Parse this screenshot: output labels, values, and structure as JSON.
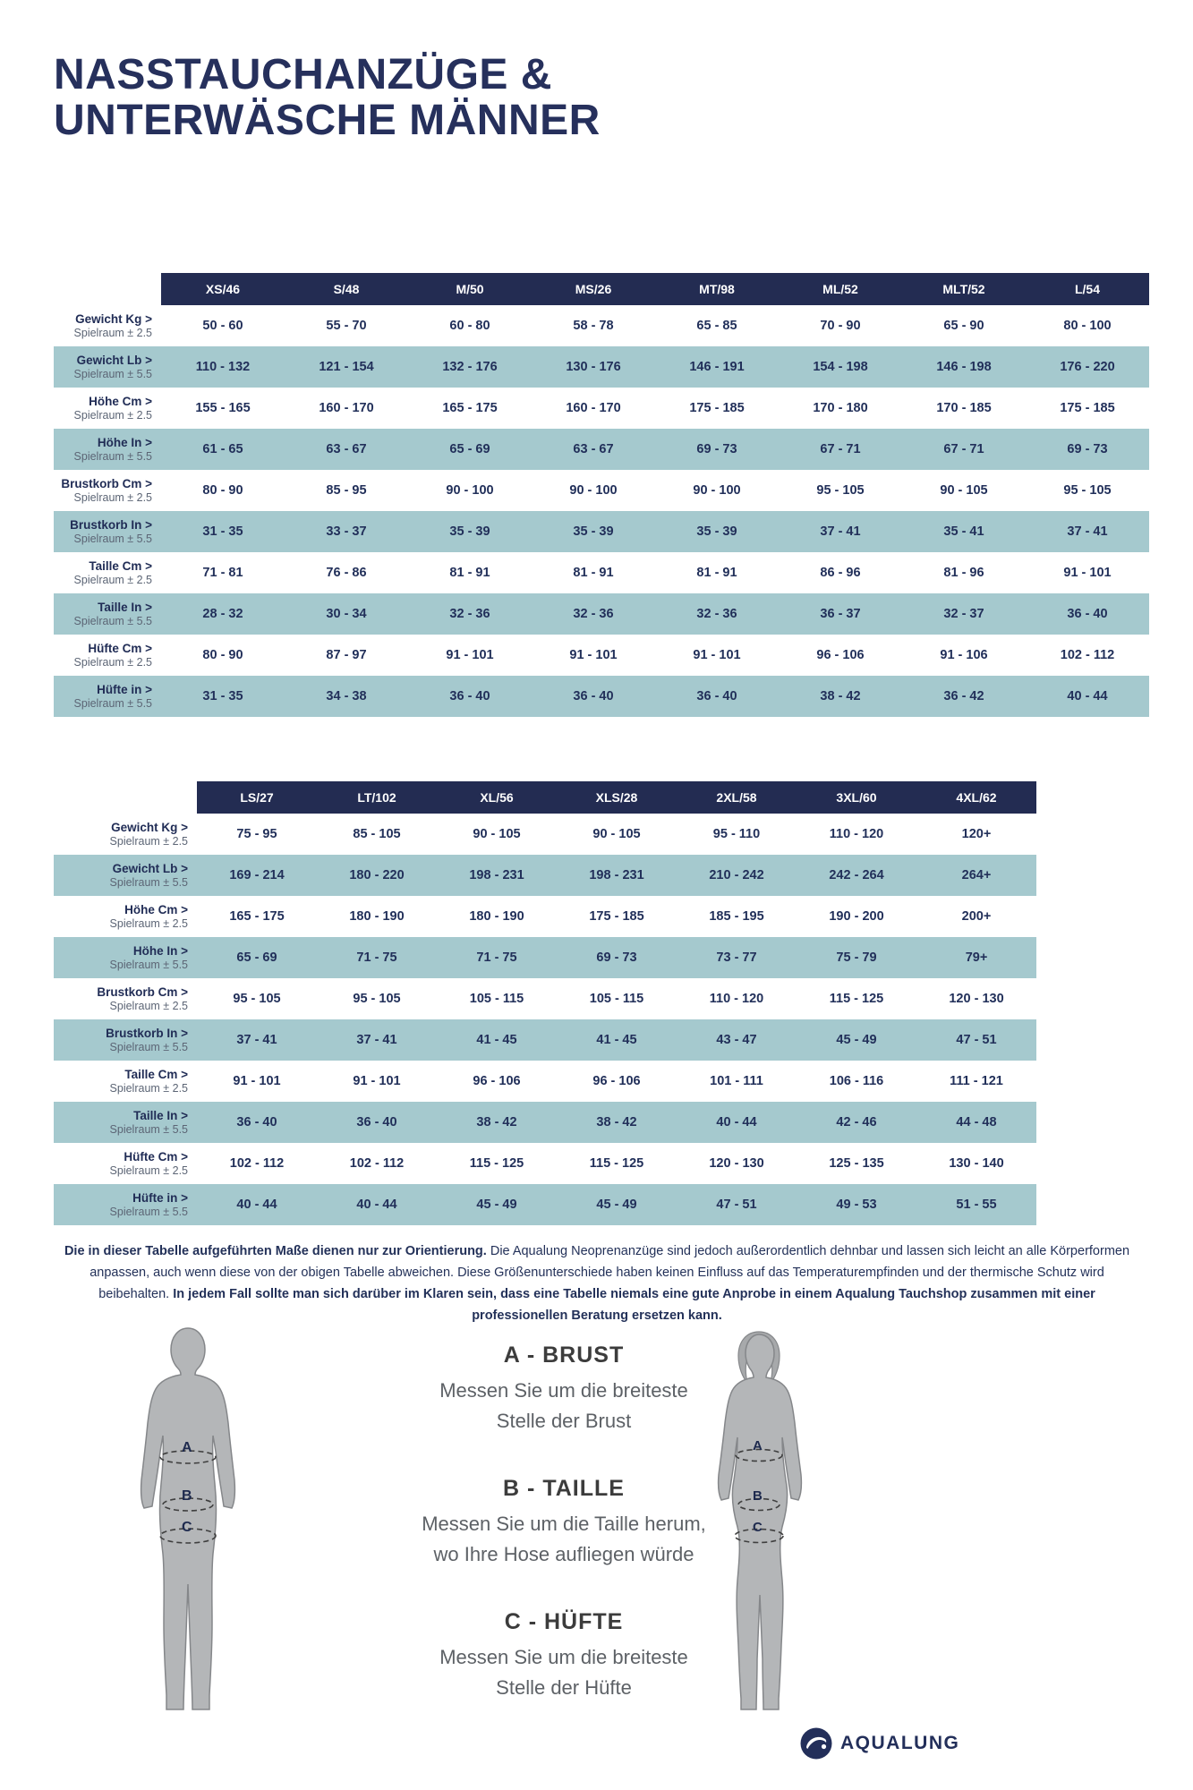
{
  "page": {
    "title_line1": "NASSTAUCHANZÜGE &",
    "title_line2": "UNTERWÄSCHE MÄNNER"
  },
  "colors": {
    "navy": "#232c52",
    "teal_row": "#a5c9ce",
    "text_navy": "#22305a"
  },
  "row_labels": [
    {
      "name": "Gewicht Kg >",
      "sub": "Spielraum ± 2.5"
    },
    {
      "name": "Gewicht Lb >",
      "sub": "Spielraum ± 5.5"
    },
    {
      "name": "Höhe Cm >",
      "sub": "Spielraum ± 2.5"
    },
    {
      "name": "Höhe In >",
      "sub": "Spielraum ± 5.5"
    },
    {
      "name": "Brustkorb Cm >",
      "sub": "Spielraum ± 2.5"
    },
    {
      "name": "Brustkorb In >",
      "sub": "Spielraum ± 5.5"
    },
    {
      "name": "Taille Cm >",
      "sub": "Spielraum ± 2.5"
    },
    {
      "name": "Taille In >",
      "sub": "Spielraum ± 5.5"
    },
    {
      "name": "Hüfte Cm >",
      "sub": "Spielraum ± 2.5"
    },
    {
      "name": "Hüfte in >",
      "sub": "Spielraum ± 5.5"
    }
  ],
  "table1": {
    "columns": [
      "XS/46",
      "S/48",
      "M/50",
      "MS/26",
      "MT/98",
      "ML/52",
      "MLT/52",
      "L/54"
    ],
    "rows": [
      [
        "50 - 60",
        "55 - 70",
        "60 - 80",
        "58 - 78",
        "65 - 85",
        "70 - 90",
        "65 - 90",
        "80 - 100"
      ],
      [
        "110 - 132",
        "121 - 154",
        "132 - 176",
        "130 - 176",
        "146 - 191",
        "154 - 198",
        "146 - 198",
        "176 - 220"
      ],
      [
        "155 - 165",
        "160 - 170",
        "165 - 175",
        "160 - 170",
        "175 - 185",
        "170 - 180",
        "170 - 185",
        "175 - 185"
      ],
      [
        "61 - 65",
        "63 - 67",
        "65 - 69",
        "63 - 67",
        "69 - 73",
        "67 - 71",
        "67 - 71",
        "69 - 73"
      ],
      [
        "80 - 90",
        "85 - 95",
        "90 - 100",
        "90 - 100",
        "90 - 100",
        "95 - 105",
        "90 - 105",
        "95 - 105"
      ],
      [
        "31 - 35",
        "33 - 37",
        "35 - 39",
        "35 - 39",
        "35 - 39",
        "37 - 41",
        "35 - 41",
        "37 - 41"
      ],
      [
        "71 - 81",
        "76 - 86",
        "81 - 91",
        "81 - 91",
        "81 - 91",
        "86 - 96",
        "81 - 96",
        "91 - 101"
      ],
      [
        "28 - 32",
        "30 - 34",
        "32 - 36",
        "32 - 36",
        "32 - 36",
        "36 - 37",
        "32 - 37",
        "36 - 40"
      ],
      [
        "80 - 90",
        "87 - 97",
        "91 - 101",
        "91 - 101",
        "91 - 101",
        "96 - 106",
        "91 - 106",
        "102 - 112"
      ],
      [
        "31 - 35",
        "34 - 38",
        "36 - 40",
        "36 - 40",
        "36 - 40",
        "38 - 42",
        "36 - 42",
        "40 - 44"
      ]
    ]
  },
  "table2": {
    "columns": [
      "LS/27",
      "LT/102",
      "XL/56",
      "XLS/28",
      "2XL/58",
      "3XL/60",
      "4XL/62"
    ],
    "rows": [
      [
        "75 - 95",
        "85 - 105",
        "90 - 105",
        "90 - 105",
        "95 - 110",
        "110 - 120",
        "120+"
      ],
      [
        "169 - 214",
        "180 - 220",
        "198 - 231",
        "198 - 231",
        "210 - 242",
        "242 - 264",
        "264+"
      ],
      [
        "165 - 175",
        "180 - 190",
        "180 - 190",
        "175 - 185",
        "185 - 195",
        "190 - 200",
        "200+"
      ],
      [
        "65 - 69",
        "71 - 75",
        "71 - 75",
        "69 - 73",
        "73 - 77",
        "75 - 79",
        "79+"
      ],
      [
        "95 - 105",
        "95 - 105",
        "105 - 115",
        "105 - 115",
        "110 - 120",
        "115 - 125",
        "120 - 130"
      ],
      [
        "37 - 41",
        "37 - 41",
        "41 - 45",
        "41 - 45",
        "43 - 47",
        "45 - 49",
        "47 - 51"
      ],
      [
        "91 - 101",
        "91 - 101",
        "96 - 106",
        "96 - 106",
        "101 - 111",
        "106 - 116",
        "111 - 121"
      ],
      [
        "36 - 40",
        "36 - 40",
        "38 - 42",
        "38 - 42",
        "40 - 44",
        "42 - 46",
        "44 - 48"
      ],
      [
        "102 - 112",
        "102 - 112",
        "115 - 125",
        "115 - 125",
        "120 - 130",
        "125 - 135",
        "130 - 140"
      ],
      [
        "40 - 44",
        "40 - 44",
        "45 - 49",
        "45 - 49",
        "47 - 51",
        "49 - 53",
        "51 - 55"
      ]
    ]
  },
  "disclaimer": {
    "bold1": "Die in dieser Tabelle aufgeführten Maße dienen nur zur Orientierung.",
    "normal": " Die Aqualung Neoprenanzüge sind jedoch außerordentlich dehnbar und lassen sich leicht an alle Körperformen anpassen, auch wenn diese von der obigen Tabelle abweichen. Diese Größenunterschiede haben keinen Einfluss auf das Temperaturempfinden und der thermische Schutz wird beibehalten. ",
    "bold2": "In jedem Fall sollte man sich darüber im Klaren sein, dass eine Tabelle niemals eine gute Anprobe in einem Aqualung Tauchshop zusammen mit einer professionellen Beratung ersetzen kann."
  },
  "measurements": [
    {
      "heading": "A - BRUST",
      "line1": "Messen Sie um die breiteste",
      "line2": "Stelle der Brust"
    },
    {
      "heading": "B - TAILLE",
      "line1": "Messen Sie um die Taille herum,",
      "line2": "wo Ihre Hose aufliegen würde"
    },
    {
      "heading": "C - HÜFTE",
      "line1": "Messen Sie um die breiteste",
      "line2": "Stelle der Hüfte"
    }
  ],
  "figure_labels": [
    "A",
    "B",
    "C"
  ],
  "logo": {
    "text": "AQUALUNG"
  }
}
